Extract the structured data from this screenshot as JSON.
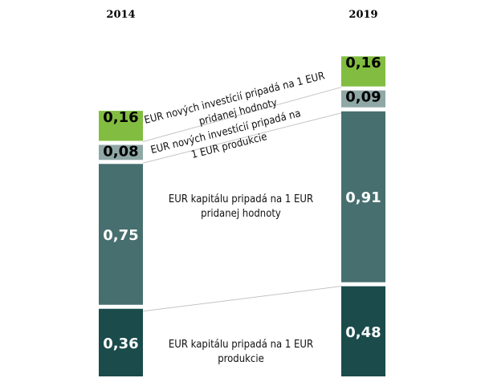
{
  "chart_data": {
    "type": "bar",
    "stacked": true,
    "categories": [
      "2014",
      "2019"
    ],
    "series": [
      {
        "name": "EUR kapitálu pripadá na 1 EUR produkcie",
        "values": [
          0.36,
          0.48
        ],
        "labels": [
          "0,36",
          "0,48"
        ],
        "color": "#1b4b4b",
        "label_color": "#ffffff"
      },
      {
        "name": "EUR kapitálu pripadá na 1 EUR pridanej hodnoty",
        "values": [
          0.75,
          0.91
        ],
        "labels": [
          "0,75",
          "0,91"
        ],
        "color": "#476f6f",
        "label_color": "#ffffff"
      },
      {
        "name": "EUR nových investícií pripadá na 1 EUR produkcie",
        "values": [
          0.08,
          0.09
        ],
        "labels": [
          "0,08",
          "0,09"
        ],
        "color": "#8fa8a6",
        "label_color": "#000000"
      },
      {
        "name": "EUR nových investícií pripadá na 1 EUR pridanej hodnoty",
        "values": [
          0.16,
          0.16
        ],
        "labels": [
          "0,16",
          "0,16"
        ],
        "color": "#82bd41",
        "label_color": "#000000"
      }
    ],
    "annotations": [
      {
        "lines": [
          "EUR kapitálu pripadá na 1 EUR",
          "produkcie"
        ]
      },
      {
        "lines": [
          "EUR kapitálu pripadá na 1 EUR",
          "pridanej hodnoty"
        ]
      },
      {
        "lines": [
          "EUR nových investícií pripadá na",
          "1 EUR produkcie"
        ]
      },
      {
        "lines": [
          "EUR nových investícií pripadá na 1 EUR",
          "pridanej hodnoty"
        ]
      }
    ],
    "title": "",
    "xlabel": "",
    "ylabel": "",
    "grid": false,
    "legend": "none"
  }
}
